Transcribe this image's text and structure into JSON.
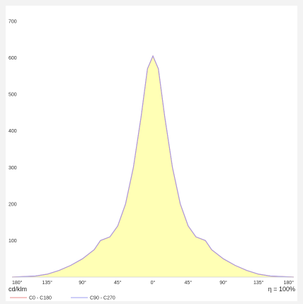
{
  "chart_data": {
    "type": "area",
    "unit_label": "cd/klm",
    "efficiency_label": "η = 100%",
    "ylim": [
      0,
      700
    ],
    "yticks": [
      100,
      200,
      300,
      400,
      500,
      600,
      700
    ],
    "xticks": [
      "180°",
      "135°",
      "90°",
      "45°",
      "0°",
      "45°",
      "90°",
      "135°",
      "180°"
    ],
    "grid": false,
    "legend_position": "bottom-left",
    "colors": {
      "fill": "#ffffb5",
      "c0": "#e88a8a",
      "c90": "#9d9df0"
    },
    "series": [
      {
        "name": "C0 - C180",
        "points": [
          [
            -180,
            0
          ],
          [
            -150,
            3
          ],
          [
            -135,
            8
          ],
          [
            -120,
            18
          ],
          [
            -105,
            32
          ],
          [
            -90,
            50
          ],
          [
            -75,
            75
          ],
          [
            -67,
            100
          ],
          [
            -55,
            110
          ],
          [
            -45,
            140
          ],
          [
            -35,
            200
          ],
          [
            -25,
            300
          ],
          [
            -15,
            440
          ],
          [
            -7,
            570
          ],
          [
            0,
            605
          ],
          [
            7,
            570
          ],
          [
            15,
            440
          ],
          [
            25,
            300
          ],
          [
            35,
            200
          ],
          [
            45,
            140
          ],
          [
            55,
            110
          ],
          [
            67,
            100
          ],
          [
            75,
            75
          ],
          [
            90,
            50
          ],
          [
            105,
            32
          ],
          [
            120,
            18
          ],
          [
            135,
            8
          ],
          [
            150,
            3
          ],
          [
            180,
            0
          ]
        ]
      },
      {
        "name": "C90 - C270",
        "points": [
          [
            -180,
            0
          ],
          [
            -150,
            3
          ],
          [
            -135,
            8
          ],
          [
            -120,
            18
          ],
          [
            -105,
            32
          ],
          [
            -90,
            50
          ],
          [
            -75,
            75
          ],
          [
            -67,
            100
          ],
          [
            -55,
            110
          ],
          [
            -45,
            140
          ],
          [
            -35,
            200
          ],
          [
            -25,
            300
          ],
          [
            -15,
            440
          ],
          [
            -7,
            570
          ],
          [
            0,
            605
          ],
          [
            7,
            570
          ],
          [
            15,
            440
          ],
          [
            25,
            300
          ],
          [
            35,
            200
          ],
          [
            45,
            140
          ],
          [
            55,
            110
          ],
          [
            67,
            100
          ],
          [
            75,
            75
          ],
          [
            90,
            50
          ],
          [
            105,
            32
          ],
          [
            120,
            18
          ],
          [
            135,
            8
          ],
          [
            150,
            3
          ],
          [
            180,
            0
          ]
        ]
      }
    ]
  }
}
